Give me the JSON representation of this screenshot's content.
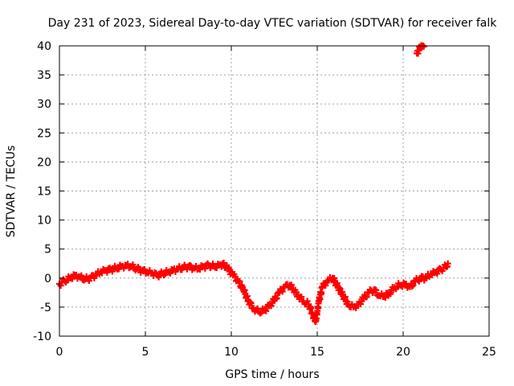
{
  "chart_data": {
    "type": "scatter",
    "title": "Day 231 of 2023, Sidereal Day-to-day VTEC variation (SDTVAR) for receiver falk",
    "xlabel": "GPS time / hours",
    "ylabel": "SDTVAR / TECUs",
    "xlim": [
      0,
      25
    ],
    "ylim": [
      -10,
      40
    ],
    "xticks": [
      "0",
      "5",
      "10",
      "15",
      "20",
      "25"
    ],
    "yticks": [
      "-10",
      "-5",
      "0",
      "5",
      "10",
      "15",
      "20",
      "25",
      "30",
      "35",
      "40"
    ],
    "grid": true,
    "marker": "+",
    "color": "#ff0000",
    "series": [
      {
        "name": "SDTVAR",
        "x": [
          0.0,
          0.3,
          0.6,
          0.9,
          1.2,
          1.5,
          1.8,
          2.1,
          2.4,
          2.7,
          3.0,
          3.3,
          3.6,
          3.9,
          4.2,
          4.5,
          4.8,
          5.1,
          5.4,
          5.7,
          6.0,
          6.3,
          6.6,
          6.9,
          7.2,
          7.5,
          7.8,
          8.1,
          8.4,
          8.7,
          9.0,
          9.3,
          9.5,
          9.8,
          10.1,
          10.4,
          10.7,
          11.0,
          11.3,
          11.6,
          11.9,
          12.2,
          12.5,
          12.8,
          13.1,
          13.4,
          13.6,
          13.9,
          14.2,
          14.5,
          14.7,
          14.9,
          15.1,
          15.3,
          15.6,
          15.9,
          16.2,
          16.5,
          16.8,
          17.1,
          17.4,
          17.7,
          18.0,
          18.3,
          18.6,
          18.9,
          19.2,
          19.5,
          19.8,
          20.1,
          20.4,
          20.7,
          21.0,
          21.3,
          21.6,
          21.9,
          22.2,
          22.5,
          22.6,
          20.8,
          20.9,
          21.0,
          21.1,
          21.2
        ],
        "y": [
          -1.0,
          -0.5,
          0.0,
          0.5,
          0.2,
          -0.2,
          0.0,
          0.5,
          1.0,
          1.3,
          1.5,
          1.7,
          2.0,
          2.2,
          2.0,
          1.6,
          1.3,
          1.0,
          0.8,
          0.5,
          0.8,
          1.0,
          1.4,
          1.6,
          1.8,
          2.0,
          1.7,
          1.6,
          2.0,
          2.2,
          2.0,
          2.2,
          2.5,
          1.6,
          0.5,
          -0.5,
          -2.0,
          -4.0,
          -5.2,
          -5.8,
          -5.6,
          -4.8,
          -3.8,
          -2.5,
          -1.5,
          -1.2,
          -2.0,
          -3.0,
          -4.0,
          -4.5,
          -6.0,
          -7.5,
          -4.0,
          -1.5,
          -0.5,
          0.0,
          -1.5,
          -3.0,
          -4.5,
          -5.0,
          -4.5,
          -3.5,
          -2.5,
          -2.0,
          -3.0,
          -3.2,
          -2.5,
          -1.6,
          -1.2,
          -1.0,
          -1.5,
          -0.6,
          0.0,
          0.0,
          0.6,
          1.0,
          1.5,
          2.0,
          2.5,
          38.7,
          39.2,
          39.6,
          39.8,
          39.9
        ]
      }
    ]
  }
}
